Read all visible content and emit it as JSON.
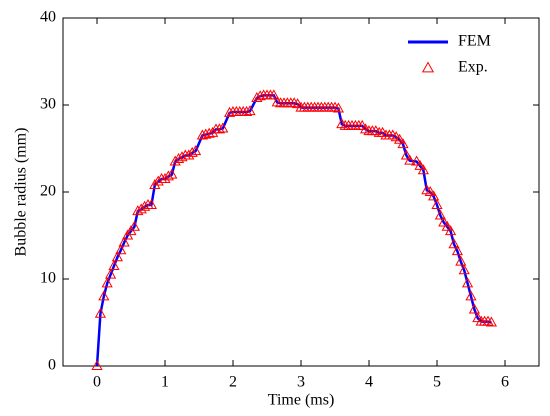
{
  "chart_data": {
    "type": "line",
    "xlabel": "Time (ms)",
    "ylabel": "Bubble radius (mm)",
    "x": [
      0,
      0.05,
      0.1,
      0.15,
      0.2,
      0.25,
      0.3,
      0.35,
      0.4,
      0.45,
      0.5,
      0.55,
      0.6,
      0.65,
      0.7,
      0.75,
      0.8,
      0.85,
      0.9,
      0.95,
      1.0,
      1.05,
      1.1,
      1.15,
      1.2,
      1.25,
      1.3,
      1.35,
      1.4,
      1.45,
      1.55,
      1.6,
      1.65,
      1.7,
      1.75,
      1.8,
      1.85,
      1.95,
      2.0,
      2.05,
      2.1,
      2.15,
      2.2,
      2.25,
      2.35,
      2.4,
      2.45,
      2.5,
      2.55,
      2.6,
      2.65,
      2.7,
      2.75,
      2.8,
      2.85,
      2.9,
      2.95,
      3.0,
      3.05,
      3.1,
      3.15,
      3.2,
      3.25,
      3.3,
      3.35,
      3.4,
      3.45,
      3.5,
      3.55,
      3.6,
      3.65,
      3.7,
      3.75,
      3.8,
      3.85,
      3.9,
      3.95,
      4.0,
      4.05,
      4.1,
      4.15,
      4.2,
      4.25,
      4.3,
      4.35,
      4.4,
      4.45,
      4.5,
      4.55,
      4.6,
      4.7,
      4.75,
      4.8,
      4.85,
      4.9,
      4.95,
      5.0,
      5.05,
      5.1,
      5.15,
      5.2,
      5.25,
      5.3,
      5.35,
      5.4,
      5.45,
      5.5,
      5.55,
      5.6,
      5.65,
      5.7,
      5.75,
      5.8
    ],
    "series": [
      {
        "name": "FEM",
        "color": "#0000ff",
        "kind": "line",
        "values": [
          0,
          6,
          8,
          9.5,
          10.5,
          11.5,
          12.5,
          13.3,
          14.2,
          15,
          15.5,
          16,
          17.8,
          18,
          18.3,
          18.5,
          18.5,
          20.8,
          21.2,
          21.5,
          21.5,
          21.8,
          22,
          23.5,
          23.8,
          24,
          24.2,
          24.2,
          24.5,
          24.7,
          26.5,
          26.6,
          26.7,
          26.8,
          27.2,
          27.2,
          27.3,
          29.1,
          29.2,
          29.2,
          29.2,
          29.2,
          29.2,
          29.3,
          30.8,
          31,
          31.1,
          31.1,
          31.1,
          31.1,
          30.3,
          30.2,
          30.2,
          30.2,
          30.2,
          30.2,
          30.1,
          29.7,
          29.7,
          29.7,
          29.7,
          29.7,
          29.7,
          29.7,
          29.7,
          29.7,
          29.7,
          29.7,
          29.6,
          27.8,
          27.6,
          27.6,
          27.6,
          27.6,
          27.6,
          27.6,
          27.2,
          27,
          27,
          27,
          26.8,
          26.8,
          26.5,
          26.5,
          26.5,
          26.3,
          26,
          25.5,
          24.2,
          23.6,
          23.5,
          23,
          22.5,
          20.2,
          20,
          19.5,
          18.5,
          17.3,
          16.5,
          16,
          15.5,
          14,
          13.2,
          12,
          11,
          9.5,
          8,
          6.5,
          5.5,
          5.1,
          5.1,
          5.1,
          5.0
        ]
      },
      {
        "name": "Exp.",
        "color": "#ff0000",
        "kind": "marker",
        "values": [
          0,
          6,
          8,
          9.5,
          10.5,
          11.5,
          12.5,
          13.3,
          14.2,
          15,
          15.5,
          16,
          17.8,
          18,
          18.3,
          18.5,
          18.5,
          20.8,
          21.2,
          21.5,
          21.5,
          21.8,
          22,
          23.5,
          23.8,
          24,
          24.2,
          24.2,
          24.5,
          24.7,
          26.5,
          26.6,
          26.7,
          26.8,
          27.2,
          27.2,
          27.3,
          29.1,
          29.2,
          29.2,
          29.2,
          29.2,
          29.2,
          29.3,
          30.8,
          31,
          31.1,
          31.1,
          31.1,
          31.1,
          30.3,
          30.2,
          30.2,
          30.2,
          30.2,
          30.2,
          30.1,
          29.7,
          29.7,
          29.7,
          29.7,
          29.7,
          29.7,
          29.7,
          29.7,
          29.7,
          29.7,
          29.7,
          29.6,
          27.8,
          27.6,
          27.6,
          27.6,
          27.6,
          27.6,
          27.6,
          27.2,
          27,
          27,
          27,
          26.8,
          26.8,
          26.5,
          26.5,
          26.5,
          26.3,
          26,
          25.5,
          24.2,
          23.6,
          23.5,
          23,
          22.5,
          20.2,
          20,
          19.5,
          18.5,
          17.3,
          16.5,
          16,
          15.5,
          14,
          13.2,
          12,
          11,
          9.5,
          8,
          6.5,
          5.5,
          5.1,
          5.1,
          5.1,
          5.0
        ]
      }
    ],
    "xlim": [
      -0.5,
      6.5
    ],
    "xticks": [
      0,
      1,
      2,
      3,
      4,
      5,
      6
    ],
    "ylim": [
      0,
      40
    ],
    "yticks": [
      0,
      10,
      20,
      30,
      40
    ],
    "legend": "upper right",
    "grid": false
  }
}
